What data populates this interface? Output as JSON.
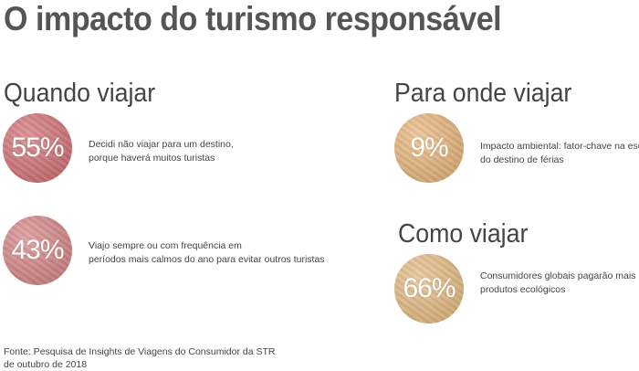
{
  "title": "O impacto do turismo responsável",
  "sections": {
    "when": {
      "heading": "Quando viajar"
    },
    "where": {
      "heading": "Para onde viajar"
    },
    "how": {
      "heading": "Como viajar"
    }
  },
  "stats": [
    {
      "value": "55%",
      "lines": [
        "Decidi não viajar para um destino,",
        "porque haverá muitos turistas"
      ],
      "color": "#d4767a"
    },
    {
      "value": "43%",
      "lines": [
        "Viajo sempre ou com frequência em",
        "períodos mais calmos do ano para evitar outros turistas"
      ],
      "color": "#d88a8a"
    },
    {
      "value": "9%",
      "lines": [
        "Impacto ambiental: fator-chave na escolha",
        "do destino de férias"
      ],
      "color": "#e9b880"
    },
    {
      "value": "66%",
      "lines": [
        "Consumidores globais pagarão mais por",
        "produtos ecológicos"
      ],
      "color": "#e6bd86"
    }
  ],
  "chart_data": {
    "type": "table",
    "title": "O impacto do turismo responsável",
    "groups": [
      "Quando viajar",
      "Para onde viajar",
      "Como viajar"
    ],
    "rows": [
      {
        "group": "Quando viajar",
        "value": 55,
        "label": "Decidi não viajar para um destino, porque haverá muitos turistas"
      },
      {
        "group": "Quando viajar",
        "value": 43,
        "label": "Viajo sempre ou com frequência em períodos mais calmos do ano para evitar outros turistas"
      },
      {
        "group": "Para onde viajar",
        "value": 9,
        "label": "Impacto ambiental: fator-chave na escolha do destino de férias"
      },
      {
        "group": "Como viajar",
        "value": 66,
        "label": "Consumidores globais pagarão mais por produtos ecológicos"
      }
    ]
  },
  "source": [
    "Fonte: Pesquisa de Insights de Viagens do Consumidor da STR",
    "de outubro de 2018"
  ]
}
